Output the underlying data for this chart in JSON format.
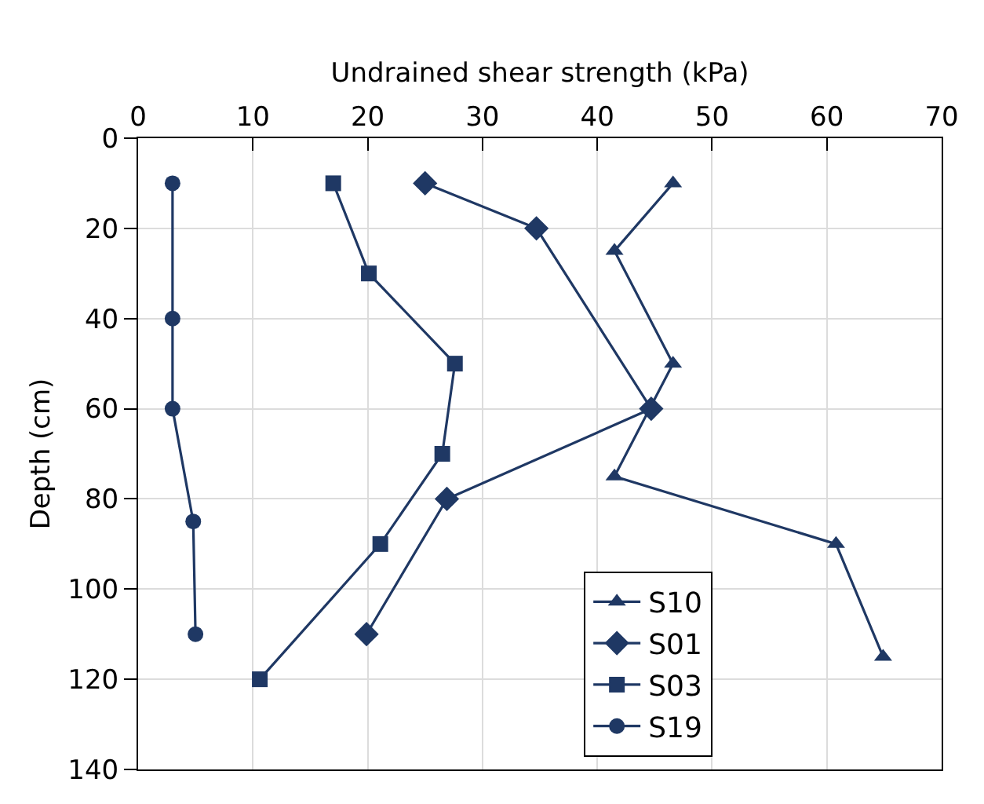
{
  "chart_data": {
    "type": "line",
    "xlabel": "Undrained shear strength (kPa)",
    "ylabel": "Depth (cm)",
    "xlim": [
      0,
      70
    ],
    "xticks": [
      0,
      10,
      20,
      30,
      40,
      50,
      60,
      70
    ],
    "ylim": [
      140,
      0
    ],
    "yticks": [
      0,
      20,
      40,
      60,
      80,
      100,
      120,
      140
    ],
    "grid": true,
    "legend": "bottom right",
    "line_style": "solid",
    "series": [
      {
        "name": "S10",
        "color": "#1f3864",
        "marker": "triangle",
        "x": [
          46.6,
          41.5,
          46.6,
          41.5,
          60.8,
          64.9
        ],
        "values": [
          10,
          25,
          50,
          75,
          90,
          115
        ]
      },
      {
        "name": "S01",
        "color": "#1f3864",
        "marker": "diamond",
        "x": [
          25,
          34.7,
          44.7,
          26.9,
          19.9
        ],
        "values": [
          10,
          20,
          60,
          80,
          110
        ]
      },
      {
        "name": "S03",
        "color": "#1f3864",
        "marker": "square",
        "x": [
          17,
          20.1,
          27.6,
          26.5,
          21.1,
          10.6
        ],
        "values": [
          10,
          30,
          50,
          70,
          90,
          120
        ]
      },
      {
        "name": "S19",
        "color": "#1f3864",
        "marker": "circle",
        "x": [
          3,
          3,
          3,
          4.8,
          5
        ],
        "values": [
          10,
          40,
          60,
          85,
          110
        ]
      }
    ]
  }
}
